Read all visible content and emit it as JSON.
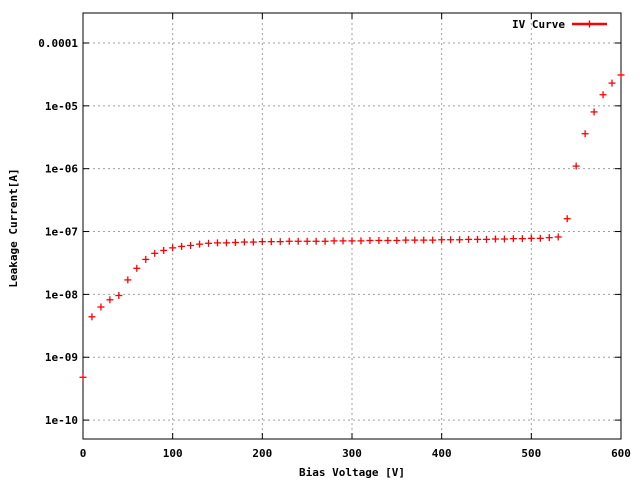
{
  "chart_data": {
    "type": "scatter",
    "title": "",
    "xlabel": "Bias Voltage [V]",
    "ylabel": "Leakage Current[A]",
    "xlim": [
      0,
      600
    ],
    "ylim": [
      5e-11,
      0.0003
    ],
    "yscale": "log",
    "grid": true,
    "legend_position": "top-right",
    "x_ticks": [
      "0",
      "100",
      "200",
      "300",
      "400",
      "500",
      "600"
    ],
    "y_ticks": [
      "1e-10",
      "1e-09",
      "1e-08",
      "1e-07",
      "1e-06",
      "1e-05",
      "0.0001"
    ],
    "series": [
      {
        "name": "IV Curve",
        "color": "#ff0000",
        "marker": "plus",
        "x": [
          0,
          10,
          20,
          30,
          40,
          50,
          60,
          70,
          80,
          90,
          100,
          110,
          120,
          130,
          140,
          150,
          160,
          170,
          180,
          190,
          200,
          210,
          220,
          230,
          240,
          250,
          260,
          270,
          280,
          290,
          300,
          310,
          320,
          330,
          340,
          350,
          360,
          370,
          380,
          390,
          400,
          410,
          420,
          430,
          440,
          450,
          460,
          470,
          480,
          490,
          500,
          510,
          520,
          530,
          540,
          550,
          560,
          570,
          580,
          590,
          600
        ],
        "y": [
          4.8e-10,
          4.4e-09,
          6.3e-09,
          8.2e-09,
          9.6e-09,
          1.7e-08,
          2.6e-08,
          3.6e-08,
          4.5e-08,
          5e-08,
          5.5e-08,
          5.8e-08,
          6e-08,
          6.3e-08,
          6.5e-08,
          6.6e-08,
          6.6e-08,
          6.7e-08,
          6.8e-08,
          6.8e-08,
          6.9e-08,
          6.9e-08,
          6.9e-08,
          7e-08,
          7e-08,
          7e-08,
          7e-08,
          7e-08,
          7.1e-08,
          7.1e-08,
          7.1e-08,
          7.1e-08,
          7.2e-08,
          7.2e-08,
          7.2e-08,
          7.2e-08,
          7.3e-08,
          7.3e-08,
          7.3e-08,
          7.3e-08,
          7.4e-08,
          7.4e-08,
          7.4e-08,
          7.5e-08,
          7.5e-08,
          7.5e-08,
          7.6e-08,
          7.6e-08,
          7.7e-08,
          7.7e-08,
          7.8e-08,
          7.8e-08,
          8e-08,
          8.2e-08,
          1.6e-07,
          1.1e-06,
          3.6e-06,
          8e-06,
          1.5e-05,
          2.3e-05,
          3.1e-05
        ]
      }
    ]
  }
}
